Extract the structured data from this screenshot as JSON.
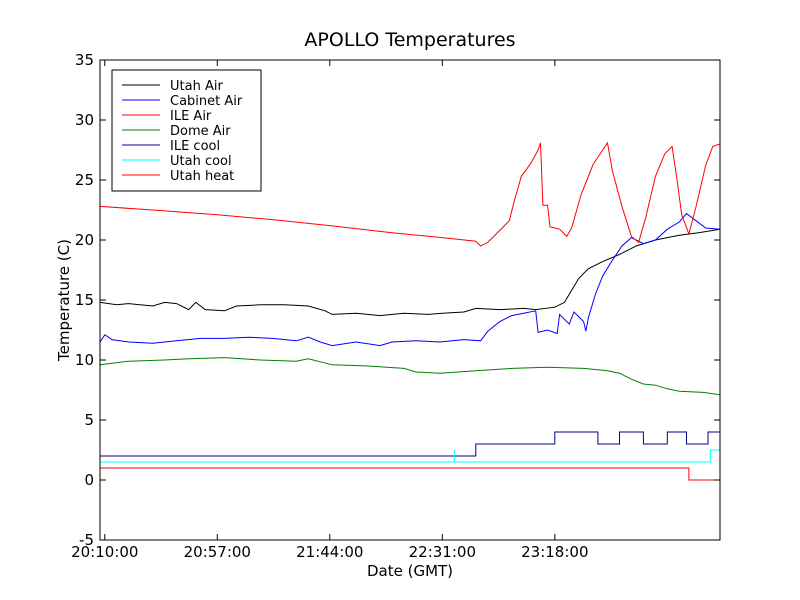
{
  "chart_data": {
    "type": "line",
    "title": "APOLLO Temperatures",
    "xlabel": "Date (GMT)",
    "ylabel": "Temperature (C)",
    "x_unit": "time of day (GMT)",
    "xlim": [
      "20:08:00",
      "0:27:00"
    ],
    "ylim": [
      -5,
      35
    ],
    "x_ticks": [
      "20:10:00",
      "20:57:00",
      "21:44:00",
      "22:31:00",
      "23:18:00"
    ],
    "y_ticks": [
      -5,
      0,
      5,
      10,
      15,
      20,
      25,
      30,
      35
    ],
    "grid": false,
    "legend_position": "top-left",
    "series": [
      {
        "name": "Utah Air",
        "color": "#000000",
        "points": [
          [
            "20:08:00",
            14.8
          ],
          [
            "20:15:00",
            14.6
          ],
          [
            "20:20:00",
            14.7
          ],
          [
            "20:30:00",
            14.5
          ],
          [
            "20:35:00",
            14.8
          ],
          [
            "20:40:00",
            14.7
          ],
          [
            "20:45:00",
            14.2
          ],
          [
            "20:48:00",
            14.8
          ],
          [
            "20:52:00",
            14.2
          ],
          [
            "21:00:00",
            14.1
          ],
          [
            "21:05:00",
            14.5
          ],
          [
            "21:15:00",
            14.6
          ],
          [
            "21:25:00",
            14.6
          ],
          [
            "21:35:00",
            14.5
          ],
          [
            "21:42:00",
            14.1
          ],
          [
            "21:45:00",
            13.8
          ],
          [
            "21:55:00",
            13.9
          ],
          [
            "22:05:00",
            13.7
          ],
          [
            "22:15:00",
            13.9
          ],
          [
            "22:25:00",
            13.8
          ],
          [
            "22:31:00",
            13.9
          ],
          [
            "22:40:00",
            14.0
          ],
          [
            "22:45:00",
            14.3
          ],
          [
            "22:55:00",
            14.2
          ],
          [
            "23:05:00",
            14.3
          ],
          [
            "23:10:00",
            14.2
          ],
          [
            "23:18:00",
            14.4
          ],
          [
            "23:22:00",
            14.8
          ],
          [
            "23:25:00",
            15.8
          ],
          [
            "23:28:00",
            16.8
          ],
          [
            "23:32:00",
            17.6
          ],
          [
            "23:38:00",
            18.2
          ],
          [
            "23:45:00",
            18.8
          ],
          [
            "23:52:00",
            19.5
          ],
          [
            "24:00:00",
            20.0
          ],
          [
            "24:10:00",
            20.4
          ],
          [
            "24:18:00",
            20.6
          ],
          [
            "24:27:00",
            20.9
          ]
        ]
      },
      {
        "name": "Cabinet Air",
        "color": "#0000ff",
        "points": [
          [
            "20:08:00",
            11.5
          ],
          [
            "20:10:00",
            12.1
          ],
          [
            "20:13:00",
            11.7
          ],
          [
            "20:20:00",
            11.5
          ],
          [
            "20:30:00",
            11.4
          ],
          [
            "20:40:00",
            11.6
          ],
          [
            "20:50:00",
            11.8
          ],
          [
            "21:00:00",
            11.8
          ],
          [
            "21:10:00",
            11.9
          ],
          [
            "21:20:00",
            11.8
          ],
          [
            "21:30:00",
            11.6
          ],
          [
            "21:35:00",
            11.9
          ],
          [
            "21:40:00",
            11.5
          ],
          [
            "21:45:00",
            11.2
          ],
          [
            "21:55:00",
            11.5
          ],
          [
            "22:05:00",
            11.2
          ],
          [
            "22:10:00",
            11.5
          ],
          [
            "22:20:00",
            11.6
          ],
          [
            "22:30:00",
            11.5
          ],
          [
            "22:40:00",
            11.7
          ],
          [
            "22:47:00",
            11.6
          ],
          [
            "22:50:00",
            12.4
          ],
          [
            "22:55:00",
            13.2
          ],
          [
            "23:00:00",
            13.7
          ],
          [
            "23:05:00",
            13.9
          ],
          [
            "23:10:00",
            14.1
          ],
          [
            "23:11:00",
            12.3
          ],
          [
            "23:15:00",
            12.5
          ],
          [
            "23:19:00",
            12.2
          ],
          [
            "23:20:00",
            13.8
          ],
          [
            "23:24:00",
            13.0
          ],
          [
            "23:26:00",
            14.0
          ],
          [
            "23:30:00",
            13.2
          ],
          [
            "23:31:00",
            12.4
          ],
          [
            "23:32:00",
            13.5
          ],
          [
            "23:35:00",
            15.5
          ],
          [
            "23:38:00",
            17.0
          ],
          [
            "23:42:00",
            18.3
          ],
          [
            "23:46:00",
            19.5
          ],
          [
            "23:50:00",
            20.2
          ],
          [
            "23:55:00",
            19.7
          ],
          [
            "24:00:00",
            20.0
          ],
          [
            "24:05:00",
            20.9
          ],
          [
            "24:10:00",
            21.5
          ],
          [
            "24:13:00",
            22.2
          ],
          [
            "24:17:00",
            21.6
          ],
          [
            "24:21:00",
            21.0
          ],
          [
            "24:27:00",
            20.9
          ]
        ]
      },
      {
        "name": "ILE Air",
        "color": "#ff0000",
        "points": [
          [
            "20:08:00",
            22.8
          ],
          [
            "20:30:00",
            22.5
          ],
          [
            "20:57:00",
            22.1
          ],
          [
            "21:20:00",
            21.7
          ],
          [
            "21:44:00",
            21.2
          ],
          [
            "22:10:00",
            20.6
          ],
          [
            "22:31:00",
            20.2
          ],
          [
            "22:45:00",
            19.9
          ],
          [
            "22:47:00",
            19.5
          ],
          [
            "22:50:00",
            19.8
          ],
          [
            "22:55:00",
            20.8
          ],
          [
            "22:59:00",
            21.6
          ],
          [
            "23:01:00",
            23.2
          ],
          [
            "23:04:00",
            25.3
          ],
          [
            "23:08:00",
            26.4
          ],
          [
            "23:11:00",
            27.5
          ],
          [
            "23:12:00",
            28.1
          ],
          [
            "23:13:00",
            22.9
          ],
          [
            "23:15:00",
            22.9
          ],
          [
            "23:16:00",
            21.1
          ],
          [
            "23:20:00",
            20.9
          ],
          [
            "23:23:00",
            20.3
          ],
          [
            "23:25:00",
            21.0
          ],
          [
            "23:29:00",
            23.8
          ],
          [
            "23:34:00",
            26.3
          ],
          [
            "23:38:00",
            27.5
          ],
          [
            "23:40:00",
            28.1
          ],
          [
            "23:42:00",
            25.8
          ],
          [
            "23:46:00",
            22.8
          ],
          [
            "23:50:00",
            20.3
          ],
          [
            "23:53:00",
            19.8
          ],
          [
            "23:56:00",
            21.9
          ],
          [
            "24:00:00",
            25.3
          ],
          [
            "24:04:00",
            27.2
          ],
          [
            "24:07:00",
            27.8
          ],
          [
            "24:09:00",
            25.1
          ],
          [
            "24:11:00",
            22.1
          ],
          [
            "24:14:00",
            20.5
          ],
          [
            "24:17:00",
            22.8
          ],
          [
            "24:21:00",
            26.2
          ],
          [
            "24:24:00",
            27.8
          ],
          [
            "24:27:00",
            28.0
          ]
        ]
      },
      {
        "name": "Dome Air",
        "color": "#008000",
        "points": [
          [
            "20:08:00",
            9.6
          ],
          [
            "20:20:00",
            9.9
          ],
          [
            "20:35:00",
            10.0
          ],
          [
            "20:45:00",
            10.1
          ],
          [
            "21:00:00",
            10.2
          ],
          [
            "21:15:00",
            10.0
          ],
          [
            "21:30:00",
            9.9
          ],
          [
            "21:35:00",
            10.1
          ],
          [
            "21:45:00",
            9.6
          ],
          [
            "22:00:00",
            9.5
          ],
          [
            "22:15:00",
            9.3
          ],
          [
            "22:20:00",
            9.0
          ],
          [
            "22:30:00",
            8.9
          ],
          [
            "22:45:00",
            9.1
          ],
          [
            "23:00:00",
            9.3
          ],
          [
            "23:15:00",
            9.4
          ],
          [
            "23:30:00",
            9.3
          ],
          [
            "23:40:00",
            9.1
          ],
          [
            "23:45:00",
            8.9
          ],
          [
            "23:50:00",
            8.4
          ],
          [
            "23:55:00",
            8.0
          ],
          [
            "24:00:00",
            7.9
          ],
          [
            "24:05:00",
            7.6
          ],
          [
            "24:10:00",
            7.4
          ],
          [
            "24:20:00",
            7.3
          ],
          [
            "24:27:00",
            7.1
          ]
        ]
      },
      {
        "name": "ILE cool",
        "color": "#00008b",
        "points": [
          [
            "20:08:00",
            2.0
          ],
          [
            "22:45:00",
            2.0
          ],
          [
            "22:45:00",
            3.0
          ],
          [
            "23:18:00",
            3.0
          ],
          [
            "23:18:00",
            4.0
          ],
          [
            "23:36:00",
            4.0
          ],
          [
            "23:36:00",
            3.0
          ],
          [
            "23:45:00",
            3.0
          ],
          [
            "23:45:00",
            4.0
          ],
          [
            "23:55:00",
            4.0
          ],
          [
            "23:55:00",
            3.0
          ],
          [
            "24:05:00",
            3.0
          ],
          [
            "24:05:00",
            4.0
          ],
          [
            "24:13:00",
            4.0
          ],
          [
            "24:13:00",
            3.0
          ],
          [
            "24:22:00",
            3.0
          ],
          [
            "24:22:00",
            4.0
          ],
          [
            "24:27:00",
            4.0
          ]
        ]
      },
      {
        "name": "Utah cool",
        "color": "#00ffff",
        "points": [
          [
            "20:08:00",
            1.5
          ],
          [
            "22:36:00",
            1.5
          ],
          [
            "22:36:00",
            2.5
          ],
          [
            "22:36:00",
            1.5
          ],
          [
            "24:23:00",
            1.5
          ],
          [
            "24:23:00",
            2.5
          ],
          [
            "24:27:00",
            2.5
          ]
        ]
      },
      {
        "name": "Utah heat",
        "color": "#ff0000",
        "points": [
          [
            "20:08:00",
            1.0
          ],
          [
            "24:14:00",
            1.0
          ],
          [
            "24:14:00",
            0.0
          ],
          [
            "24:27:00",
            0.0
          ]
        ]
      }
    ]
  }
}
